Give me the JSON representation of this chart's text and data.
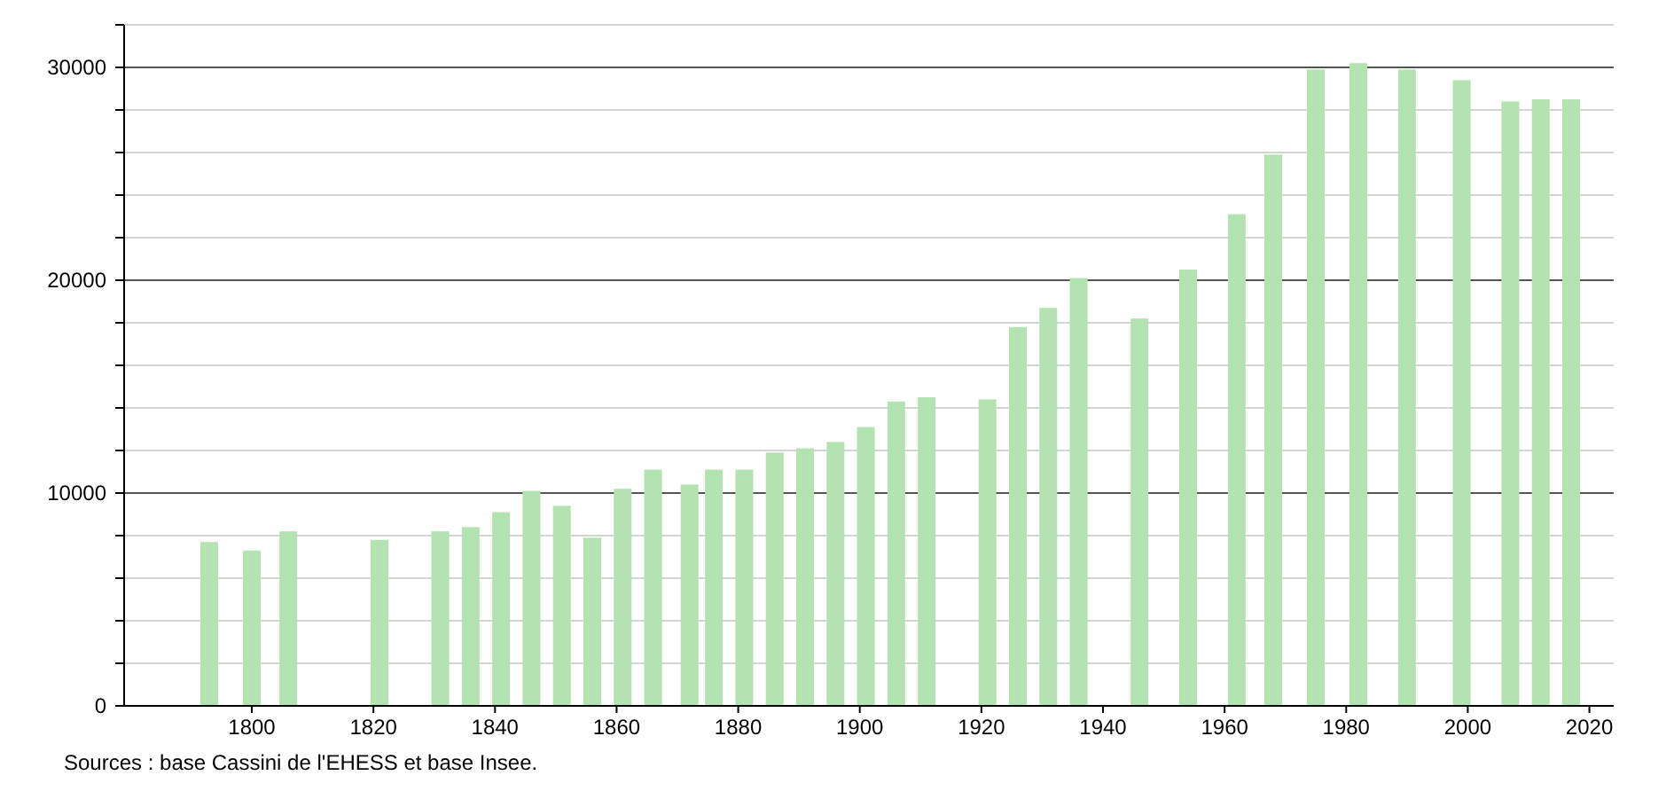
{
  "chart_data": {
    "type": "bar",
    "x": [
      1793,
      1800,
      1806,
      1821,
      1831,
      1836,
      1841,
      1846,
      1851,
      1856,
      1861,
      1866,
      1872,
      1876,
      1881,
      1886,
      1891,
      1896,
      1901,
      1906,
      1911,
      1921,
      1926,
      1931,
      1936,
      1946,
      1954,
      1962,
      1968,
      1975,
      1982,
      1990,
      1999,
      2007,
      2012,
      2017
    ],
    "values": [
      7700,
      7300,
      8200,
      7800,
      8200,
      8400,
      9100,
      10100,
      9400,
      7900,
      10200,
      11100,
      10400,
      11100,
      11100,
      11900,
      12100,
      12400,
      13100,
      14300,
      14500,
      14400,
      17800,
      18700,
      20100,
      18200,
      20500,
      23100,
      25900,
      29900,
      30200,
      29900,
      29400,
      28400,
      28500,
      28500
    ],
    "color": "#b3e3b0",
    "xlim": [
      1779,
      2024
    ],
    "xticks": [
      1800,
      1820,
      1840,
      1860,
      1880,
      1900,
      1920,
      1940,
      1960,
      1980,
      2000,
      2020
    ],
    "ylim": [
      0,
      32000
    ],
    "yticks": [
      0,
      {
        "value": 2000,
        "label": null
      },
      {
        "value": 4000,
        "label": null
      },
      {
        "value": 6000,
        "label": null
      },
      {
        "value": 8000,
        "label": null
      },
      10000,
      {
        "value": 12000,
        "label": null
      },
      {
        "value": 14000,
        "label": null
      },
      {
        "value": 16000,
        "label": null
      },
      {
        "value": 18000,
        "label": null
      },
      20000,
      {
        "value": 22000,
        "label": null
      },
      {
        "value": 24000,
        "label": null
      },
      {
        "value": 26000,
        "label": null
      },
      {
        "value": 28000,
        "label": null
      },
      30000,
      {
        "value": 32000,
        "label": null
      }
    ],
    "grid": true,
    "annotations": [
      "Sources : base Cassini de l'EHESS et base Insee."
    ]
  }
}
